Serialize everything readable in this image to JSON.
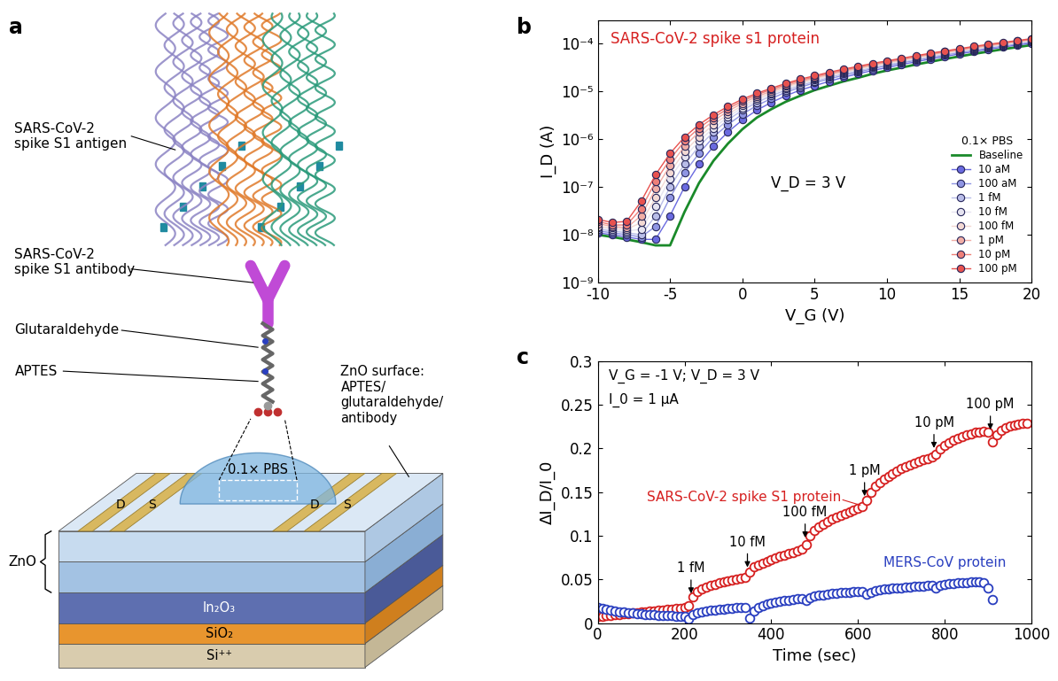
{
  "diagram": {
    "panel": "a",
    "labels": {
      "antigen": "SARS-CoV-2\nspike S1 antigen",
      "antibody": "SARS-CoV-2\nspike S1 antibody",
      "glutaraldehyde": "Glutaraldehyde",
      "aptes": "APTES",
      "surface": "ZnO surface:\nAPTES/\nglutaraldehyde/\nantibody",
      "buffer": "0.1× PBS",
      "zno": "ZnO",
      "electrodes": [
        "D",
        "S",
        "D",
        "S"
      ],
      "layers": [
        "In₂O₃",
        "SiO₂",
        "Si⁺⁺"
      ]
    }
  },
  "chart_data": [
    {
      "panel": "b",
      "type": "line",
      "title": "SARS-CoV-2 spike s1 protein",
      "x_label": "V_G (V)",
      "y_label": "I_D (A)",
      "annotations": [
        "V_D = 3 V"
      ],
      "log": "y",
      "xlim": [
        -10,
        20
      ],
      "ylim": [
        1e-09,
        0.0003
      ],
      "xticks": [
        -10,
        -5,
        0,
        5,
        10,
        15,
        20
      ],
      "yticks": [
        {
          "value": 1e-09,
          "label": "10⁻⁹"
        },
        {
          "value": 1e-08,
          "label": "10⁻⁸"
        },
        {
          "value": 1e-07,
          "label": "10⁻⁷"
        },
        {
          "value": 1e-06,
          "label": "10⁻⁶"
        },
        {
          "value": 1e-05,
          "label": "10⁻⁵"
        },
        {
          "value": 0.0001,
          "label": "10⁻⁴"
        }
      ],
      "legend": "lower right",
      "legend_title": "0.1× PBS",
      "x": [
        -10,
        -9,
        -8,
        -7,
        -6,
        -5,
        -4,
        -3,
        -2,
        -1,
        0,
        1,
        2,
        3,
        4,
        5,
        6,
        7,
        8,
        9,
        10,
        11,
        12,
        13,
        14,
        15,
        16,
        17,
        18,
        19,
        20
      ],
      "series": [
        {
          "name": "Baseline",
          "color": "#1a8a2a",
          "line_style": "solid",
          "values": [
            1e-08,
            9e-09,
            8e-09,
            7e-09,
            6e-09,
            6e-09,
            3e-08,
            1.2e-07,
            3.5e-07,
            8e-07,
            1.6e-06,
            2.8e-06,
            4.2e-06,
            6e-06,
            8e-06,
            1.05e-05,
            1.3e-05,
            1.6e-05,
            1.9e-05,
            2.3e-05,
            2.7e-05,
            3.1e-05,
            3.6e-05,
            4.1e-05,
            4.7e-05,
            5.3e-05,
            6e-05,
            6.7e-05,
            7.5e-05,
            8.3e-05,
            9.2e-05
          ]
        },
        {
          "name": "10 aM",
          "color": "#6a6ae0",
          "marker": "circle",
          "values": [
            1.1e-08,
            1e-08,
            9e-09,
            8e-09,
            8e-09,
            2.5e-08,
            1e-07,
            3e-07,
            7e-07,
            1.4e-06,
            2.5e-06,
            4e-06,
            5.8e-06,
            8e-06,
            1.05e-05,
            1.3e-05,
            1.6e-05,
            1.95e-05,
            2.3e-05,
            2.7e-05,
            3.1e-05,
            3.6e-05,
            4.1e-05,
            4.7e-05,
            5.3e-05,
            6e-05,
            6.7e-05,
            7.5e-05,
            8.3e-05,
            9.2e-05,
            0.0001
          ]
        },
        {
          "name": "100 aM",
          "color": "#8f95e3",
          "marker": "circle",
          "values": [
            1.2e-08,
            1.1e-08,
            1e-08,
            9e-09,
            1.5e-08,
            6e-08,
            2e-07,
            5e-07,
            1.1e-06,
            2e-06,
            3.3e-06,
            5e-06,
            7e-06,
            9.5e-06,
            1.2e-05,
            1.5e-05,
            1.8e-05,
            2.15e-05,
            2.5e-05,
            2.95e-05,
            3.4e-05,
            3.9e-05,
            4.4e-05,
            5e-05,
            5.7e-05,
            6.4e-05,
            7.1e-05,
            7.9e-05,
            8.8e-05,
            9.7e-05,
            0.000106
          ]
        },
        {
          "name": "1 fM",
          "color": "#b9bde8",
          "marker": "circle",
          "values": [
            1.3e-08,
            1.2e-08,
            1.1e-08,
            1e-08,
            2.5e-08,
            1e-07,
            3e-07,
            7e-07,
            1.4e-06,
            2.5e-06,
            4e-06,
            5.8e-06,
            8e-06,
            1.05e-05,
            1.3e-05,
            1.6e-05,
            1.95e-05,
            2.3e-05,
            2.7e-05,
            3.1e-05,
            3.6e-05,
            4.1e-05,
            4.6e-05,
            5.2e-05,
            5.9e-05,
            6.6e-05,
            7.4e-05,
            8.2e-05,
            9.1e-05,
            0.0001,
            0.00011
          ]
        },
        {
          "name": "10 fM",
          "color": "#e6e4f0",
          "marker": "circle",
          "values": [
            1.4e-08,
            1.3e-08,
            1.2e-08,
            1.3e-08,
            4e-08,
            1.5e-07,
            4.2e-07,
            9e-07,
            1.7e-06,
            2.9e-06,
            4.5e-06,
            6.4e-06,
            8.7e-06,
            1.12e-05,
            1.4e-05,
            1.7e-05,
            2.05e-05,
            2.4e-05,
            2.8e-05,
            3.25e-05,
            3.7e-05,
            4.2e-05,
            4.8e-05,
            5.4e-05,
            6.1e-05,
            6.8e-05,
            7.6e-05,
            8.4e-05,
            9.3e-05,
            0.000102,
            0.000112
          ]
        },
        {
          "name": "100 fM",
          "color": "#f3d9d3",
          "marker": "circle",
          "values": [
            1.5e-08,
            1.4e-08,
            1.3e-08,
            1.8e-08,
            6e-08,
            2e-07,
            5.5e-07,
            1.1e-06,
            2e-06,
            3.3e-06,
            5e-06,
            7e-06,
            9.3e-06,
            1.2e-05,
            1.5e-05,
            1.8e-05,
            2.15e-05,
            2.5e-05,
            2.9e-05,
            3.35e-05,
            3.85e-05,
            4.35e-05,
            4.95e-05,
            5.6e-05,
            6.3e-05,
            7e-05,
            7.8e-05,
            8.7e-05,
            9.6e-05,
            0.000105,
            0.000115
          ]
        },
        {
          "name": "1 pM",
          "color": "#f1aea6",
          "marker": "circle",
          "values": [
            1.7e-08,
            1.5e-08,
            1.4e-08,
            2.5e-08,
            9e-08,
            2.8e-07,
            7e-07,
            1.4e-06,
            2.4e-06,
            3.8e-06,
            5.6e-06,
            7.7e-06,
            1e-05,
            1.28e-05,
            1.58e-05,
            1.9e-05,
            2.25e-05,
            2.62e-05,
            3.02e-05,
            3.5e-05,
            4e-05,
            4.5e-05,
            5.1e-05,
            5.8e-05,
            6.5e-05,
            7.2e-05,
            8e-05,
            8.9e-05,
            9.8e-05,
            0.000108,
            0.000118
          ]
        },
        {
          "name": "10 pM",
          "color": "#ee8079",
          "marker": "circle",
          "values": [
            1.9e-08,
            1.6e-08,
            1.6e-08,
            3.5e-08,
            1.3e-07,
            3.8e-07,
            9e-07,
            1.7e-06,
            2.8e-06,
            4.3e-06,
            6.2e-06,
            8.4e-06,
            1.08e-05,
            1.37e-05,
            1.68e-05,
            2e-05,
            2.36e-05,
            2.75e-05,
            3.15e-05,
            3.65e-05,
            4.15e-05,
            4.7e-05,
            5.3e-05,
            6e-05,
            6.7e-05,
            7.5e-05,
            8.3e-05,
            9.2e-05,
            0.000101,
            0.000111,
            0.000121
          ]
        },
        {
          "name": "100 pM",
          "color": "#e8524f",
          "marker": "circle",
          "values": [
            2.1e-08,
            1.8e-08,
            1.9e-08,
            5e-08,
            1.8e-07,
            5e-07,
            1.1e-06,
            2e-06,
            3.2e-06,
            4.8e-06,
            6.8e-06,
            9e-06,
            1.15e-05,
            1.45e-05,
            1.78e-05,
            2.1e-05,
            2.48e-05,
            2.88e-05,
            3.3e-05,
            3.8e-05,
            4.3e-05,
            4.85e-05,
            5.5e-05,
            6.2e-05,
            6.9e-05,
            7.7e-05,
            8.6e-05,
            9.5e-05,
            0.000104,
            0.000114,
            0.000125
          ]
        }
      ]
    },
    {
      "panel": "c",
      "type": "scatter",
      "x_label": "Time (sec)",
      "y_label": "ΔI_D/I_0",
      "annotations": [
        "V_G = -1 V; V_D = 3 V",
        "I_0 = 1 μA"
      ],
      "events": [
        {
          "label": "1 fM",
          "x": 215
        },
        {
          "label": "10 fM",
          "x": 345
        },
        {
          "label": "100 fM",
          "x": 478
        },
        {
          "label": "1 pM",
          "x": 615
        },
        {
          "label": "10 pM",
          "x": 775
        },
        {
          "label": "100 pM",
          "x": 905
        }
      ],
      "xlim": [
        0,
        1000
      ],
      "ylim": [
        0,
        0.3
      ],
      "xticks": [
        0,
        200,
        400,
        600,
        800,
        1000
      ],
      "yticks": [
        0,
        0.05,
        0.1,
        0.15,
        0.2,
        0.25,
        0.3
      ],
      "marker": "circle",
      "series": [
        {
          "name": "SARS-CoV-2 spike S1 protein",
          "color": "#d62020",
          "x": [
            0,
            10,
            20,
            30,
            40,
            50,
            60,
            70,
            80,
            90,
            100,
            110,
            120,
            130,
            140,
            150,
            160,
            170,
            180,
            190,
            200,
            210,
            220,
            230,
            240,
            250,
            260,
            270,
            280,
            290,
            300,
            310,
            320,
            330,
            340,
            350,
            360,
            370,
            380,
            390,
            400,
            410,
            420,
            430,
            440,
            450,
            460,
            470,
            480,
            490,
            500,
            510,
            520,
            530,
            540,
            550,
            560,
            570,
            580,
            590,
            600,
            610,
            620,
            630,
            640,
            650,
            660,
            670,
            680,
            690,
            700,
            710,
            720,
            730,
            740,
            750,
            760,
            770,
            780,
            790,
            800,
            810,
            820,
            830,
            840,
            850,
            860,
            870,
            880,
            890,
            900,
            910,
            920,
            930,
            940,
            950,
            960,
            970,
            980,
            990
          ],
          "values": [
            0.008,
            0.008,
            0.009,
            0.009,
            0.01,
            0.01,
            0.011,
            0.011,
            0.012,
            0.012,
            0.013,
            0.013,
            0.014,
            0.014,
            0.015,
            0.015,
            0.016,
            0.016,
            0.017,
            0.017,
            0.018,
            0.02,
            0.03,
            0.036,
            0.039,
            0.041,
            0.043,
            0.044,
            0.046,
            0.047,
            0.048,
            0.049,
            0.05,
            0.051,
            0.052,
            0.058,
            0.064,
            0.067,
            0.069,
            0.071,
            0.073,
            0.075,
            0.077,
            0.078,
            0.08,
            0.081,
            0.083,
            0.085,
            0.09,
            0.1,
            0.106,
            0.11,
            0.113,
            0.116,
            0.119,
            0.121,
            0.123,
            0.125,
            0.127,
            0.129,
            0.131,
            0.133,
            0.14,
            0.15,
            0.157,
            0.161,
            0.165,
            0.168,
            0.171,
            0.174,
            0.177,
            0.179,
            0.181,
            0.183,
            0.185,
            0.187,
            0.188,
            0.19,
            0.193,
            0.199,
            0.203,
            0.206,
            0.209,
            0.211,
            0.213,
            0.215,
            0.216,
            0.218,
            0.219,
            0.22,
            0.218,
            0.207,
            0.215,
            0.221,
            0.224,
            0.226,
            0.227,
            0.228,
            0.229,
            0.229
          ]
        },
        {
          "name": "MERS-CoV protein",
          "color": "#2a3fc0",
          "x": [
            0,
            10,
            20,
            30,
            40,
            50,
            60,
            70,
            80,
            90,
            100,
            110,
            120,
            130,
            140,
            150,
            160,
            170,
            180,
            190,
            200,
            210,
            220,
            230,
            240,
            250,
            260,
            270,
            280,
            290,
            300,
            310,
            320,
            330,
            340,
            350,
            360,
            370,
            380,
            390,
            400,
            410,
            420,
            430,
            440,
            450,
            460,
            470,
            480,
            490,
            500,
            510,
            520,
            530,
            540,
            550,
            560,
            570,
            580,
            590,
            600,
            610,
            620,
            630,
            640,
            650,
            660,
            670,
            680,
            690,
            700,
            710,
            720,
            730,
            740,
            750,
            760,
            770,
            780,
            790,
            800,
            810,
            820,
            830,
            840,
            850,
            860,
            870,
            880,
            890,
            900,
            910
          ],
          "values": [
            0.018,
            0.017,
            0.016,
            0.015,
            0.014,
            0.013,
            0.013,
            0.012,
            0.012,
            0.011,
            0.011,
            0.01,
            0.01,
            0.01,
            0.009,
            0.009,
            0.009,
            0.009,
            0.008,
            0.008,
            0.008,
            0.005,
            0.01,
            0.012,
            0.013,
            0.014,
            0.015,
            0.015,
            0.016,
            0.016,
            0.017,
            0.017,
            0.018,
            0.018,
            0.018,
            0.006,
            0.014,
            0.018,
            0.02,
            0.022,
            0.023,
            0.024,
            0.025,
            0.026,
            0.026,
            0.027,
            0.028,
            0.028,
            0.026,
            0.029,
            0.031,
            0.032,
            0.032,
            0.033,
            0.034,
            0.034,
            0.035,
            0.035,
            0.035,
            0.036,
            0.036,
            0.036,
            0.033,
            0.035,
            0.037,
            0.038,
            0.039,
            0.039,
            0.04,
            0.04,
            0.04,
            0.041,
            0.041,
            0.042,
            0.042,
            0.042,
            0.043,
            0.043,
            0.04,
            0.043,
            0.044,
            0.045,
            0.045,
            0.046,
            0.046,
            0.046,
            0.047,
            0.047,
            0.047,
            0.046,
            0.04,
            0.027
          ]
        }
      ]
    }
  ]
}
